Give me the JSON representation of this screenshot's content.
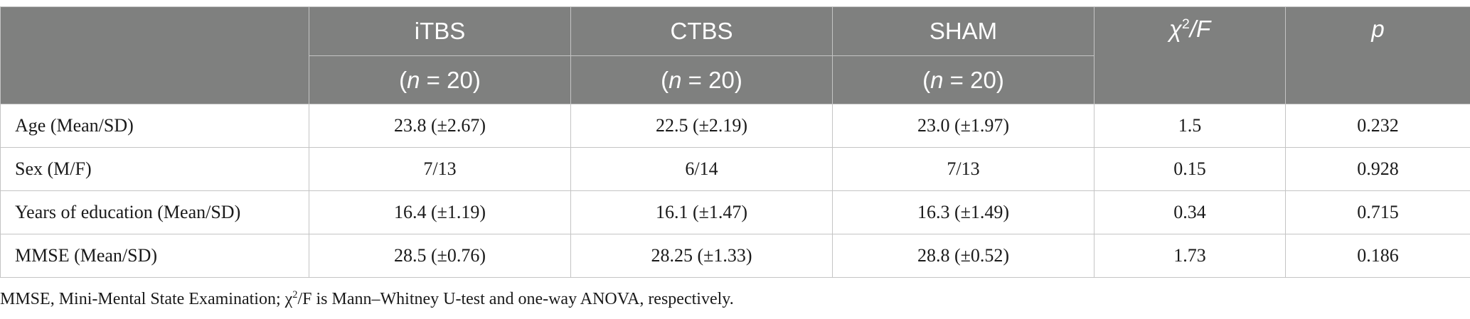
{
  "table": {
    "header": {
      "groups": [
        {
          "name": "iTBS",
          "n_prefix": "(",
          "n_var": "n",
          "n_suffix": " = 20)"
        },
        {
          "name": "CTBS",
          "n_prefix": "(",
          "n_var": "n",
          "n_suffix": " = 20)"
        },
        {
          "name": "SHAM",
          "n_prefix": "(",
          "n_var": "n",
          "n_suffix": " = 20)"
        }
      ],
      "chi_symbol": "χ",
      "chi_sup": "2",
      "chi_rest": "/F",
      "p": "p"
    },
    "rows": [
      {
        "label": "Age (Mean/SD)",
        "itbs": "23.8 (±2.67)",
        "ctbs": "22.5 (±2.19)",
        "sham": "23.0 (±1.97)",
        "stat": "1.5",
        "p": "0.232"
      },
      {
        "label": "Sex (M/F)",
        "itbs": "7/13",
        "ctbs": "6/14",
        "sham": "7/13",
        "stat": "0.15",
        "p": "0.928"
      },
      {
        "label": "Years of education (Mean/SD)",
        "itbs": "16.4 (±1.19)",
        "ctbs": "16.1 (±1.47)",
        "sham": "16.3 (±1.49)",
        "stat": "0.34",
        "p": "0.715"
      },
      {
        "label": "MMSE (Mean/SD)",
        "itbs": "28.5 (±0.76)",
        "ctbs": "28.25 (±1.33)",
        "sham": "28.8 (±0.52)",
        "stat": "1.73",
        "p": "0.186"
      }
    ]
  },
  "footnote": {
    "part1": "MMSE, Mini-Mental State Examination; χ",
    "sup": "2",
    "part2": "/F is Mann–Whitney U-test and one-way ANOVA, respectively."
  },
  "colors": {
    "header_bg": "#7f807f",
    "header_text": "#ffffff",
    "border": "#c4c4c4"
  }
}
